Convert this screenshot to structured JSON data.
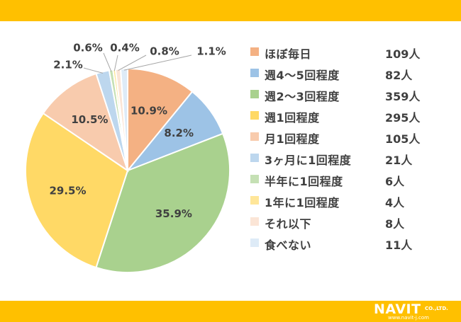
{
  "chart_data": {
    "type": "pie",
    "slices": [
      {
        "label": "ほぼ毎日",
        "count_text": "109人",
        "percent": 10.9,
        "percent_label": "10.9%",
        "color": "#f4b183"
      },
      {
        "label": "週4～5回程度",
        "count_text": "82人",
        "percent": 8.2,
        "percent_label": "8.2%",
        "color": "#9dc3e6"
      },
      {
        "label": "週2～3回程度",
        "count_text": "359人",
        "percent": 35.9,
        "percent_label": "35.9%",
        "color": "#a9d18e"
      },
      {
        "label": "週1回程度",
        "count_text": "295人",
        "percent": 29.5,
        "percent_label": "29.5%",
        "color": "#ffd966"
      },
      {
        "label": "月1回程度",
        "count_text": "105人",
        "percent": 10.5,
        "percent_label": "10.5%",
        "color": "#f8cbad"
      },
      {
        "label": "3ヶ月に1回程度",
        "count_text": "21人",
        "percent": 2.1,
        "percent_label": "2.1%",
        "color": "#bdd7ee"
      },
      {
        "label": "半年に1回程度",
        "count_text": "6人",
        "percent": 0.6,
        "percent_label": "0.6%",
        "color": "#c5e0b4"
      },
      {
        "label": "1年に1回程度",
        "count_text": "4人",
        "percent": 0.4,
        "percent_label": "0.4%",
        "color": "#ffe699"
      },
      {
        "label": "それ以下",
        "count_text": "8人",
        "percent": 0.8,
        "percent_label": "0.8%",
        "color": "#fbe5d6"
      },
      {
        "label": "食べない",
        "count_text": "11人",
        "percent": 1.1,
        "percent_label": "1.1%",
        "color": "#deebf7"
      }
    ],
    "legend_position": "right"
  },
  "branding": {
    "logo_name": "NAVIT",
    "logo_suffix": "CO.,LTD.",
    "url": "www.navit-j.com"
  },
  "colors": {
    "bar": "#ffc000",
    "text": "#404040",
    "slice_border": "#ffffff"
  }
}
